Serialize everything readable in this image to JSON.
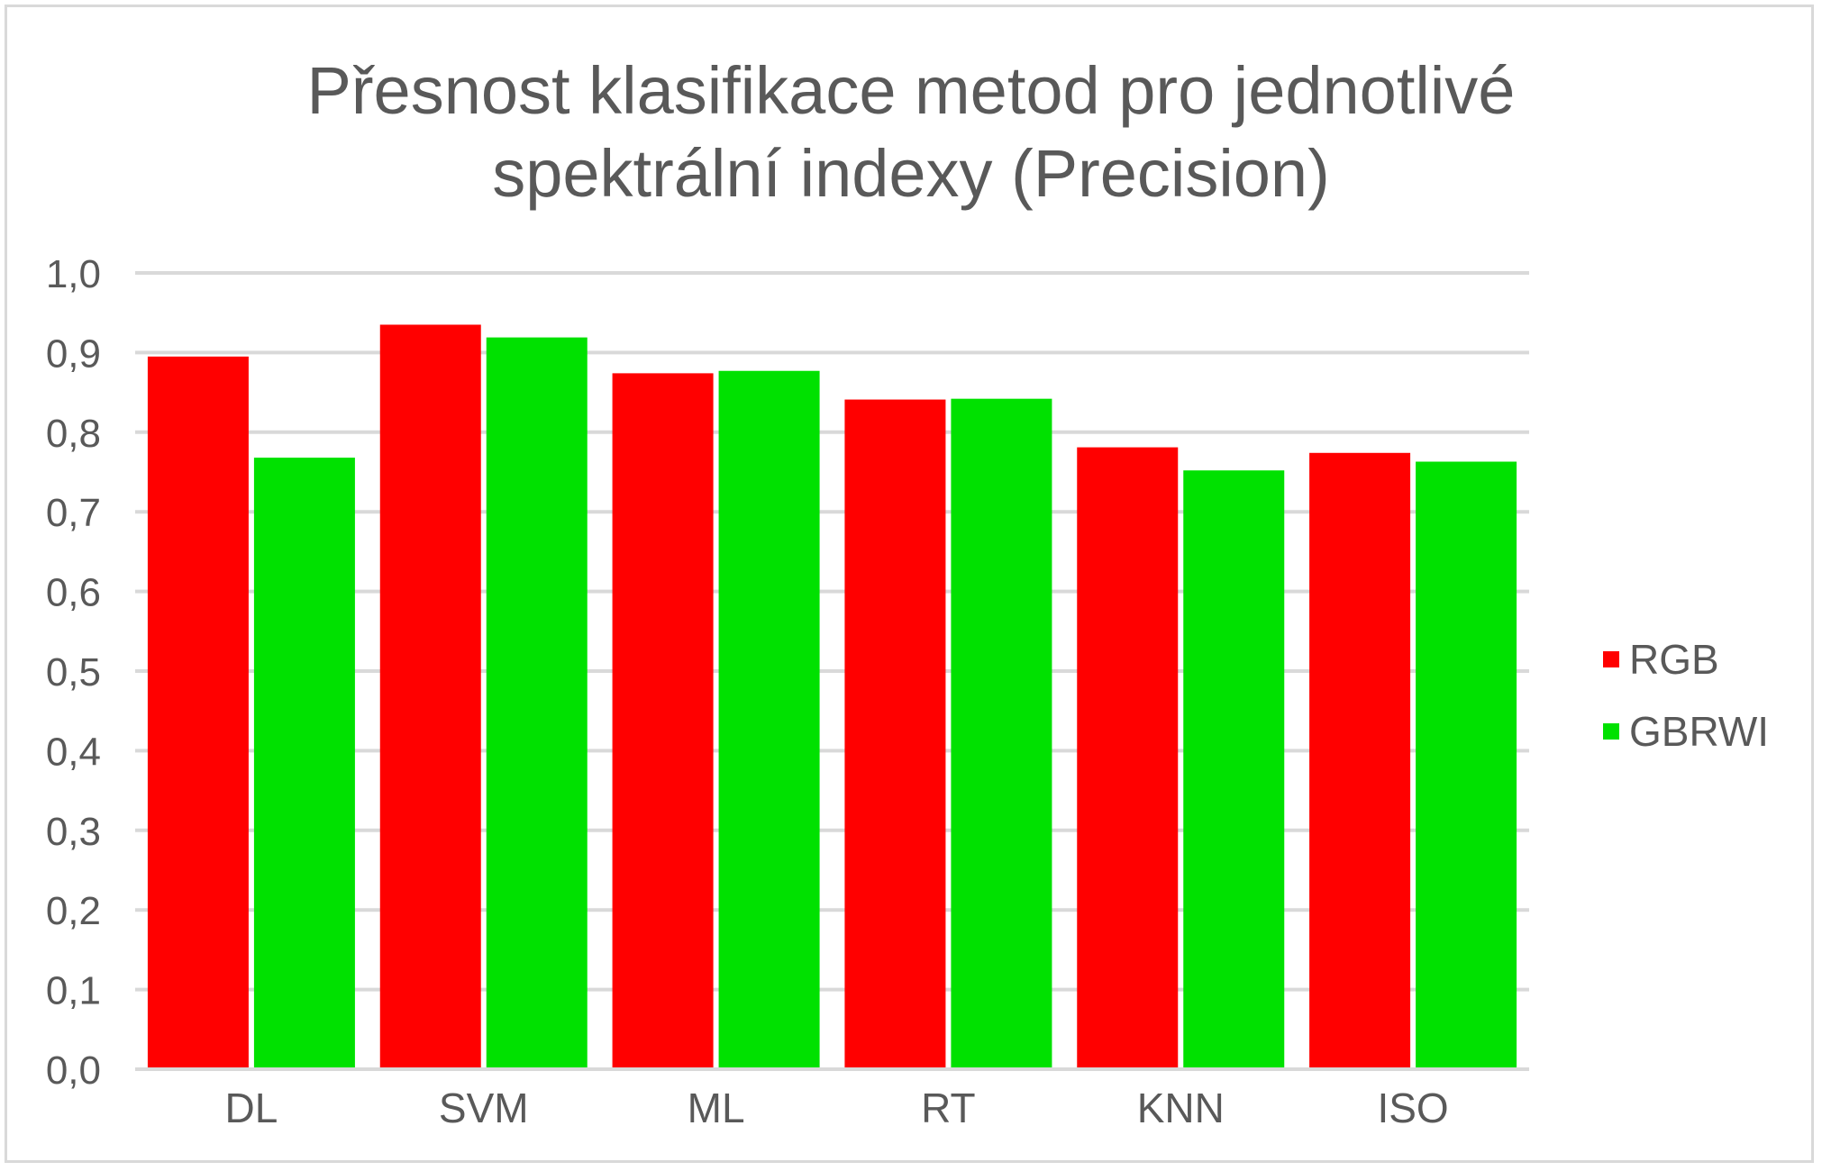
{
  "chart_data": {
    "type": "bar",
    "title": "Přesnost klasifikace metod pro jednotlivé\nspektrální indexy (Precision)",
    "categories": [
      "DL",
      "SVM",
      "ML",
      "RT",
      "KNN",
      "ISO"
    ],
    "series": [
      {
        "name": "RGB",
        "color": "#ff0000",
        "values": [
          0.895,
          0.935,
          0.874,
          0.841,
          0.781,
          0.774
        ]
      },
      {
        "name": "GBRWI",
        "color": "#00e100",
        "values": [
          0.768,
          0.919,
          0.877,
          0.842,
          0.752,
          0.763
        ]
      }
    ],
    "ylim": [
      0,
      1.0
    ],
    "yticks": [
      "0,0",
      "0,1",
      "0,2",
      "0,3",
      "0,4",
      "0,5",
      "0,6",
      "0,7",
      "0,8",
      "0,9",
      "1,0"
    ],
    "grid": true,
    "legend_position": "right"
  }
}
